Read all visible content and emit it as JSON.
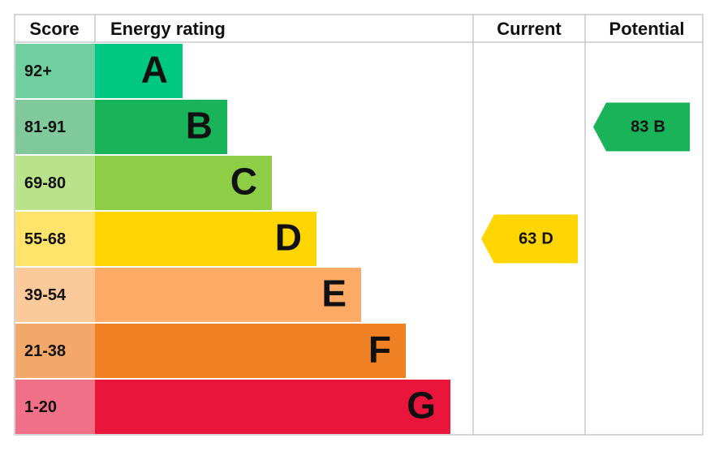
{
  "header": {
    "score": "Score",
    "energy_rating": "Energy rating",
    "current": "Current",
    "potential": "Potential"
  },
  "bands": [
    {
      "score": "92+",
      "letter": "A",
      "color": "#00c781",
      "light": "#6fcf9f"
    },
    {
      "score": "81-91",
      "letter": "B",
      "color": "#19b459",
      "light": "#7fc99a"
    },
    {
      "score": "69-80",
      "letter": "C",
      "color": "#8dce46",
      "light": "#b9e38a"
    },
    {
      "score": "55-68",
      "letter": "D",
      "color": "#ffd500",
      "light": "#ffe36a"
    },
    {
      "score": "39-54",
      "letter": "E",
      "color": "#fcaa65",
      "light": "#fcc99b"
    },
    {
      "score": "21-38",
      "letter": "F",
      "color": "#ef8023",
      "light": "#f3a86a"
    },
    {
      "score": "1-20",
      "letter": "G",
      "color": "#e9153b",
      "light": "#f07088"
    }
  ],
  "current": {
    "score": 63,
    "rating": "D"
  },
  "potential": {
    "score": 83,
    "rating": "B"
  }
}
